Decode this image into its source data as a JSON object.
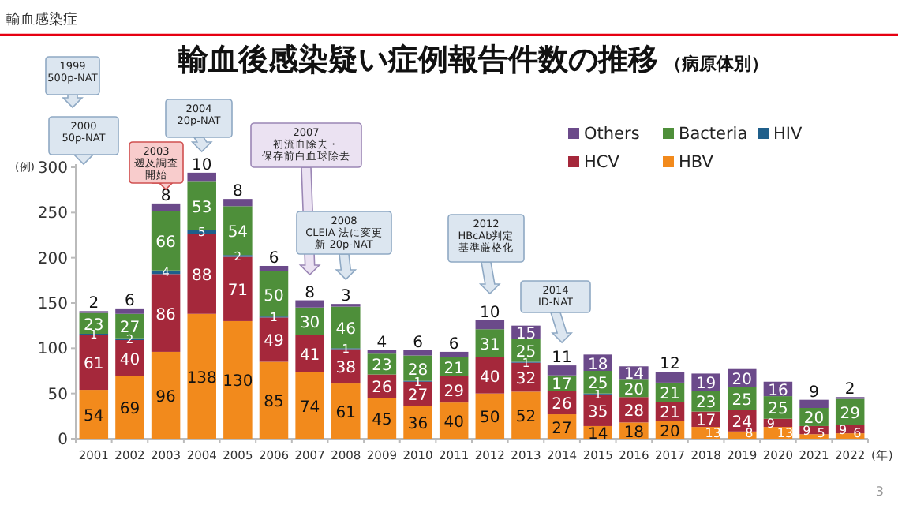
{
  "chart_data": {
    "type": "bar",
    "stacked": true,
    "title": "輸血後感染疑い症例報告件数の推移",
    "subtitle": "（病原体別）",
    "ylabel": "(例)",
    "xlabel": "(年)",
    "categories": [
      "2001",
      "2002",
      "2003",
      "2004",
      "2005",
      "2006",
      "2007",
      "2008",
      "2009",
      "2010",
      "2011",
      "2012",
      "2013",
      "2014",
      "2015",
      "2016",
      "2017",
      "2018",
      "2019",
      "2020",
      "2021",
      "2022"
    ],
    "series": [
      {
        "name": "HBV",
        "color": "#f28a1c",
        "values": [
          54,
          69,
          96,
          138,
          130,
          85,
          74,
          61,
          45,
          36,
          40,
          50,
          52,
          27,
          14,
          18,
          20,
          13,
          8,
          13,
          5,
          6
        ]
      },
      {
        "name": "HCV",
        "color": "#a5283b",
        "values": [
          61,
          40,
          86,
          88,
          71,
          49,
          41,
          38,
          26,
          27,
          29,
          40,
          32,
          26,
          35,
          28,
          21,
          17,
          24,
          9,
          9,
          9
        ]
      },
      {
        "name": "HIV",
        "color": "#1f5f8b",
        "values": [
          1,
          2,
          4,
          5,
          2,
          1,
          null,
          1,
          null,
          1,
          null,
          null,
          1,
          null,
          1,
          null,
          null,
          null,
          null,
          null,
          null,
          null
        ]
      },
      {
        "name": "Bacteria",
        "color": "#4e8f3a",
        "values": [
          23,
          27,
          66,
          53,
          54,
          50,
          30,
          46,
          23,
          28,
          21,
          31,
          25,
          17,
          25,
          20,
          21,
          23,
          25,
          25,
          20,
          29
        ]
      },
      {
        "name": "Others",
        "color": "#6b4a8a",
        "values": [
          2,
          6,
          8,
          10,
          8,
          6,
          8,
          3,
          4,
          6,
          6,
          10,
          15,
          11,
          18,
          14,
          12,
          19,
          20,
          16,
          9,
          2
        ]
      }
    ],
    "data_labels": true,
    "legend": "top right",
    "grid": false,
    "ylim": [
      0,
      300
    ],
    "yticks": [
      0,
      50,
      100,
      150,
      200,
      250,
      300
    ],
    "annotations": [
      "輸血感染症",
      "3",
      "1999 500p-NAT",
      "2000 50p-NAT",
      "2003 遡及調査開始",
      "2004 20p-NAT",
      "2007 初流血除去・保存前白血球除去",
      "2008 CLEIA 法に変更新 20p-NAT",
      "2012 HBcAb判定基準厳格化",
      "2014 ID-NAT"
    ]
  }
}
